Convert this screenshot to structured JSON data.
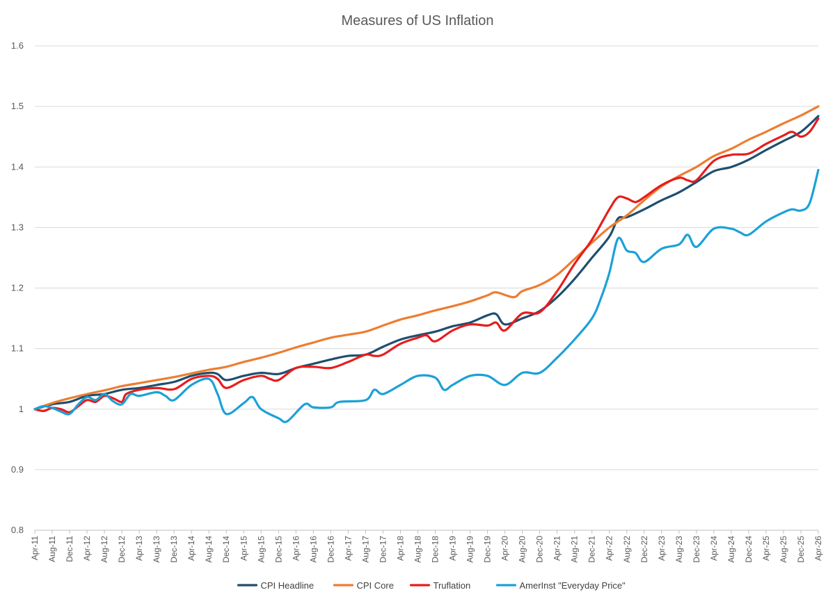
{
  "chart_data": {
    "type": "line",
    "title": "Measures of US Inflation",
    "xlabel": "",
    "ylabel": "",
    "ylim": [
      0.8,
      1.6
    ],
    "yticks": [
      "0.8",
      "0.9",
      "1",
      "1.1",
      "1.2",
      "1.3",
      "1.4",
      "1.5",
      "1.6"
    ],
    "x_start": "Apr-11",
    "x_end": "Apr-26",
    "xticks": [
      "Apr-11",
      "Aug-11",
      "Dec-11",
      "Apr-12",
      "Aug-12",
      "Dec-12",
      "Apr-13",
      "Aug-13",
      "Dec-13",
      "Apr-14",
      "Aug-14",
      "Dec-14",
      "Apr-15",
      "Aug-15",
      "Dec-15",
      "Apr-16",
      "Aug-16",
      "Dec-16",
      "Apr-17",
      "Aug-17",
      "Dec-17",
      "Apr-18",
      "Aug-18",
      "Dec-18",
      "Apr-19",
      "Aug-19",
      "Dec-19",
      "Apr-20",
      "Aug-20",
      "Dec-20",
      "Apr-21",
      "Aug-21",
      "Dec-21",
      "Apr-22",
      "Aug-22",
      "Dec-22",
      "Apr-23",
      "Aug-23",
      "Dec-23",
      "Apr-24",
      "Aug-24",
      "Dec-24",
      "Apr-25",
      "Aug-25",
      "Dec-25",
      "Apr-26"
    ],
    "grid": true,
    "legend_position": "bottom",
    "series": [
      {
        "name": "CPI Headline",
        "color": "#1f4e6e",
        "points": [
          [
            "Apr-11",
            1.0
          ],
          [
            "Aug-11",
            1.008
          ],
          [
            "Dec-11",
            1.012
          ],
          [
            "Apr-12",
            1.022
          ],
          [
            "Aug-12",
            1.025
          ],
          [
            "Dec-12",
            1.032
          ],
          [
            "Apr-13",
            1.035
          ],
          [
            "Aug-13",
            1.04
          ],
          [
            "Dec-13",
            1.045
          ],
          [
            "Apr-14",
            1.055
          ],
          [
            "Aug-14",
            1.06
          ],
          [
            "Oct-14",
            1.058
          ],
          [
            "Dec-14",
            1.048
          ],
          [
            "Apr-15",
            1.055
          ],
          [
            "Aug-15",
            1.06
          ],
          [
            "Dec-15",
            1.058
          ],
          [
            "Apr-16",
            1.068
          ],
          [
            "Aug-16",
            1.075
          ],
          [
            "Dec-16",
            1.082
          ],
          [
            "Apr-17",
            1.088
          ],
          [
            "Aug-17",
            1.09
          ],
          [
            "Dec-17",
            1.103
          ],
          [
            "Apr-18",
            1.115
          ],
          [
            "Aug-18",
            1.122
          ],
          [
            "Dec-18",
            1.128
          ],
          [
            "Apr-19",
            1.137
          ],
          [
            "Aug-19",
            1.143
          ],
          [
            "Dec-19",
            1.155
          ],
          [
            "Feb-20",
            1.157
          ],
          [
            "Apr-20",
            1.14
          ],
          [
            "Aug-20",
            1.15
          ],
          [
            "Dec-20",
            1.162
          ],
          [
            "Apr-21",
            1.185
          ],
          [
            "Aug-21",
            1.215
          ],
          [
            "Dec-21",
            1.25
          ],
          [
            "Apr-22",
            1.285
          ],
          [
            "Jun-22",
            1.315
          ],
          [
            "Aug-22",
            1.317
          ],
          [
            "Dec-22",
            1.33
          ],
          [
            "Apr-23",
            1.345
          ],
          [
            "Aug-23",
            1.358
          ],
          [
            "Dec-23",
            1.375
          ],
          [
            "Apr-24",
            1.393
          ],
          [
            "Aug-24",
            1.4
          ],
          [
            "Dec-24",
            1.412
          ],
          [
            "Apr-25",
            1.428
          ],
          [
            "Aug-25",
            1.443
          ],
          [
            "Dec-25",
            1.458
          ],
          [
            "Apr-26",
            1.484
          ]
        ]
      },
      {
        "name": "CPI Core",
        "color": "#ed7d31",
        "points": [
          [
            "Apr-11",
            1.0
          ],
          [
            "Aug-11",
            1.01
          ],
          [
            "Dec-11",
            1.018
          ],
          [
            "Apr-12",
            1.025
          ],
          [
            "Aug-12",
            1.031
          ],
          [
            "Dec-12",
            1.038
          ],
          [
            "Apr-13",
            1.043
          ],
          [
            "Aug-13",
            1.048
          ],
          [
            "Dec-13",
            1.053
          ],
          [
            "Apr-14",
            1.059
          ],
          [
            "Aug-14",
            1.065
          ],
          [
            "Dec-14",
            1.07
          ],
          [
            "Apr-15",
            1.078
          ],
          [
            "Aug-15",
            1.085
          ],
          [
            "Dec-15",
            1.093
          ],
          [
            "Apr-16",
            1.102
          ],
          [
            "Aug-16",
            1.11
          ],
          [
            "Dec-16",
            1.118
          ],
          [
            "Apr-17",
            1.123
          ],
          [
            "Aug-17",
            1.128
          ],
          [
            "Dec-17",
            1.138
          ],
          [
            "Apr-18",
            1.148
          ],
          [
            "Aug-18",
            1.155
          ],
          [
            "Dec-18",
            1.163
          ],
          [
            "Apr-19",
            1.17
          ],
          [
            "Aug-19",
            1.178
          ],
          [
            "Dec-19",
            1.188
          ],
          [
            "Feb-20",
            1.193
          ],
          [
            "Jun-20",
            1.185
          ],
          [
            "Aug-20",
            1.195
          ],
          [
            "Dec-20",
            1.205
          ],
          [
            "Apr-21",
            1.222
          ],
          [
            "Aug-21",
            1.248
          ],
          [
            "Dec-21",
            1.275
          ],
          [
            "Apr-22",
            1.3
          ],
          [
            "Aug-22",
            1.32
          ],
          [
            "Dec-22",
            1.345
          ],
          [
            "Apr-23",
            1.368
          ],
          [
            "Aug-23",
            1.385
          ],
          [
            "Dec-23",
            1.4
          ],
          [
            "Apr-24",
            1.418
          ],
          [
            "Aug-24",
            1.43
          ],
          [
            "Dec-24",
            1.445
          ],
          [
            "Apr-25",
            1.458
          ],
          [
            "Aug-25",
            1.472
          ],
          [
            "Dec-25",
            1.485
          ],
          [
            "Apr-26",
            1.5
          ]
        ]
      },
      {
        "name": "Truflation",
        "color": "#e81c1c",
        "points": [
          [
            "Apr-11",
            1.0
          ],
          [
            "Jun-11",
            0.997
          ],
          [
            "Aug-11",
            1.002
          ],
          [
            "Oct-11",
            1.0
          ],
          [
            "Dec-11",
            0.995
          ],
          [
            "Feb-12",
            1.005
          ],
          [
            "Apr-12",
            1.015
          ],
          [
            "Jun-12",
            1.012
          ],
          [
            "Aug-12",
            1.022
          ],
          [
            "Oct-12",
            1.018
          ],
          [
            "Dec-12",
            1.012
          ],
          [
            "Jan-13",
            1.025
          ],
          [
            "Apr-13",
            1.032
          ],
          [
            "Aug-13",
            1.035
          ],
          [
            "Dec-13",
            1.033
          ],
          [
            "Apr-14",
            1.05
          ],
          [
            "Aug-14",
            1.055
          ],
          [
            "Oct-14",
            1.05
          ],
          [
            "Dec-14",
            1.035
          ],
          [
            "Apr-15",
            1.048
          ],
          [
            "Aug-15",
            1.055
          ],
          [
            "Oct-15",
            1.05
          ],
          [
            "Dec-15",
            1.048
          ],
          [
            "Apr-16",
            1.068
          ],
          [
            "Aug-16",
            1.07
          ],
          [
            "Dec-16",
            1.068
          ],
          [
            "Apr-17",
            1.078
          ],
          [
            "Aug-17",
            1.09
          ],
          [
            "Oct-17",
            1.088
          ],
          [
            "Dec-17",
            1.09
          ],
          [
            "Apr-18",
            1.108
          ],
          [
            "Aug-18",
            1.118
          ],
          [
            "Oct-18",
            1.122
          ],
          [
            "Dec-18",
            1.112
          ],
          [
            "Apr-19",
            1.13
          ],
          [
            "Aug-19",
            1.14
          ],
          [
            "Dec-19",
            1.138
          ],
          [
            "Feb-20",
            1.143
          ],
          [
            "Apr-20",
            1.13
          ],
          [
            "Aug-20",
            1.158
          ],
          [
            "Dec-20",
            1.16
          ],
          [
            "Apr-21",
            1.195
          ],
          [
            "Aug-21",
            1.24
          ],
          [
            "Dec-21",
            1.28
          ],
          [
            "Apr-22",
            1.33
          ],
          [
            "Jun-22",
            1.35
          ],
          [
            "Aug-22",
            1.348
          ],
          [
            "Oct-22",
            1.342
          ],
          [
            "Dec-22",
            1.35
          ],
          [
            "Apr-23",
            1.37
          ],
          [
            "Aug-23",
            1.382
          ],
          [
            "Oct-23",
            1.378
          ],
          [
            "Dec-23",
            1.378
          ],
          [
            "Apr-24",
            1.41
          ],
          [
            "Aug-24",
            1.42
          ],
          [
            "Dec-24",
            1.422
          ],
          [
            "Apr-25",
            1.438
          ],
          [
            "Aug-25",
            1.452
          ],
          [
            "Oct-25",
            1.458
          ],
          [
            "Dec-25",
            1.45
          ],
          [
            "Feb-26",
            1.458
          ],
          [
            "Apr-26",
            1.48
          ]
        ]
      },
      {
        "name": "AmerInst \"Everyday Price\"",
        "color": "#1ba1d8",
        "points": [
          [
            "Apr-11",
            1.0
          ],
          [
            "Jun-11",
            1.005
          ],
          [
            "Aug-11",
            1.002
          ],
          [
            "Oct-11",
            0.996
          ],
          [
            "Dec-11",
            0.992
          ],
          [
            "Feb-12",
            1.008
          ],
          [
            "Apr-12",
            1.02
          ],
          [
            "Jun-12",
            1.015
          ],
          [
            "Aug-12",
            1.025
          ],
          [
            "Oct-12",
            1.013
          ],
          [
            "Dec-12",
            1.008
          ],
          [
            "Feb-13",
            1.025
          ],
          [
            "Apr-13",
            1.022
          ],
          [
            "Aug-13",
            1.028
          ],
          [
            "Oct-13",
            1.022
          ],
          [
            "Dec-13",
            1.015
          ],
          [
            "Apr-14",
            1.04
          ],
          [
            "Aug-14",
            1.05
          ],
          [
            "Oct-14",
            1.025
          ],
          [
            "Dec-14",
            0.992
          ],
          [
            "Apr-15",
            1.01
          ],
          [
            "Jun-15",
            1.02
          ],
          [
            "Aug-15",
            1.0
          ],
          [
            "Dec-15",
            0.985
          ],
          [
            "Feb-16",
            0.98
          ],
          [
            "Jun-16",
            1.008
          ],
          [
            "Aug-16",
            1.003
          ],
          [
            "Dec-16",
            1.003
          ],
          [
            "Feb-17",
            1.012
          ],
          [
            "Aug-17",
            1.015
          ],
          [
            "Oct-17",
            1.032
          ],
          [
            "Dec-17",
            1.025
          ],
          [
            "Apr-18",
            1.04
          ],
          [
            "Aug-18",
            1.055
          ],
          [
            "Dec-18",
            1.052
          ],
          [
            "Feb-19",
            1.032
          ],
          [
            "Apr-19",
            1.04
          ],
          [
            "Aug-19",
            1.055
          ],
          [
            "Dec-19",
            1.055
          ],
          [
            "Apr-20",
            1.04
          ],
          [
            "Aug-20",
            1.06
          ],
          [
            "Dec-20",
            1.06
          ],
          [
            "Apr-21",
            1.085
          ],
          [
            "Aug-21",
            1.115
          ],
          [
            "Dec-21",
            1.15
          ],
          [
            "Feb-22",
            1.182
          ],
          [
            "Apr-22",
            1.225
          ],
          [
            "Jun-22",
            1.282
          ],
          [
            "Aug-22",
            1.262
          ],
          [
            "Oct-22",
            1.258
          ],
          [
            "Dec-22",
            1.243
          ],
          [
            "Apr-23",
            1.265
          ],
          [
            "Aug-23",
            1.272
          ],
          [
            "Oct-23",
            1.288
          ],
          [
            "Dec-23",
            1.268
          ],
          [
            "Apr-24",
            1.298
          ],
          [
            "Aug-24",
            1.298
          ],
          [
            "Oct-24",
            1.292
          ],
          [
            "Dec-24",
            1.288
          ],
          [
            "Apr-25",
            1.31
          ],
          [
            "Aug-25",
            1.325
          ],
          [
            "Oct-25",
            1.33
          ],
          [
            "Dec-25",
            1.328
          ],
          [
            "Feb-26",
            1.34
          ],
          [
            "Apr-26",
            1.395
          ]
        ]
      }
    ]
  }
}
